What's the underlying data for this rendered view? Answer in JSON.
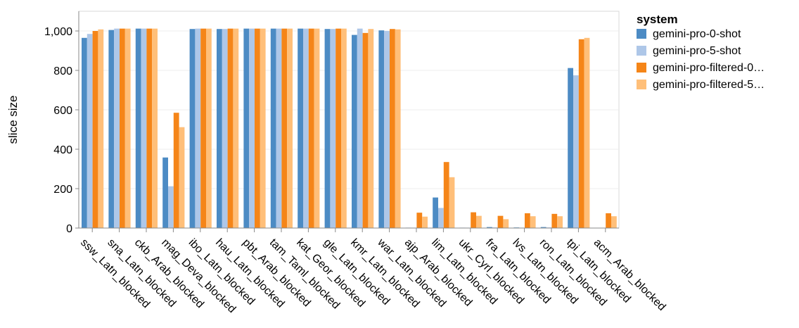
{
  "chart_data": {
    "type": "bar",
    "ylabel": "slice size",
    "ylim": [
      0,
      1100
    ],
    "yticks": [
      0,
      200,
      400,
      600,
      800,
      1000
    ],
    "ytick_labels": [
      "0",
      "200",
      "400",
      "600",
      "800",
      "1,000"
    ],
    "grid": true,
    "legend_placement": "top-right",
    "legend_title": "system",
    "categories": [
      "ssw_Latn_blocked",
      "sna_Latn_blocked",
      "ckb_Arab_blocked",
      "mag_Deva_blocked",
      "ibo_Latn_blocked",
      "hau_Latn_blocked",
      "pbt_Arab_blocked",
      "tam_Taml_blocked",
      "kat_Geor_blocked",
      "gle_Latn_blocked",
      "kmr_Latn_blocked",
      "war_Latn_blocked",
      "ajp_Arab_blocked",
      "lim_Latn_blocked",
      "ukr_Cyrl_blocked",
      "fra_Latn_blocked",
      "lvs_Latn_blocked",
      "ron_Latn_blocked",
      "tpi_Latn_blocked",
      "acm_Arab_blocked"
    ],
    "series": [
      {
        "name": "gemini-pro-0-shot",
        "color": "#4c8bc4",
        "values": [
          965,
          1005,
          1012,
          358,
          1010,
          1010,
          1012,
          1012,
          1012,
          1010,
          980,
          1003,
          2,
          155,
          2,
          5,
          3,
          5,
          812,
          0
        ]
      },
      {
        "name": "gemini-pro-5-shot",
        "color": "#aec7e8",
        "values": [
          985,
          1012,
          1012,
          212,
          1012,
          1010,
          1012,
          1012,
          1012,
          1010,
          1012,
          1000,
          2,
          102,
          2,
          3,
          2,
          3,
          775,
          0
        ]
      },
      {
        "name": "gemini-pro-filtered-0…",
        "color": "#f58518",
        "values": [
          1000,
          1012,
          1012,
          585,
          1012,
          1012,
          1012,
          1012,
          1012,
          1012,
          990,
          1010,
          78,
          335,
          80,
          62,
          75,
          72,
          958,
          75
        ]
      },
      {
        "name": "gemini-pro-filtered-5…",
        "color": "#ffbf79",
        "values": [
          1008,
          1012,
          1012,
          512,
          1012,
          1012,
          1012,
          1012,
          1012,
          1012,
          1010,
          1008,
          58,
          258,
          62,
          45,
          60,
          60,
          965,
          60
        ]
      }
    ]
  }
}
